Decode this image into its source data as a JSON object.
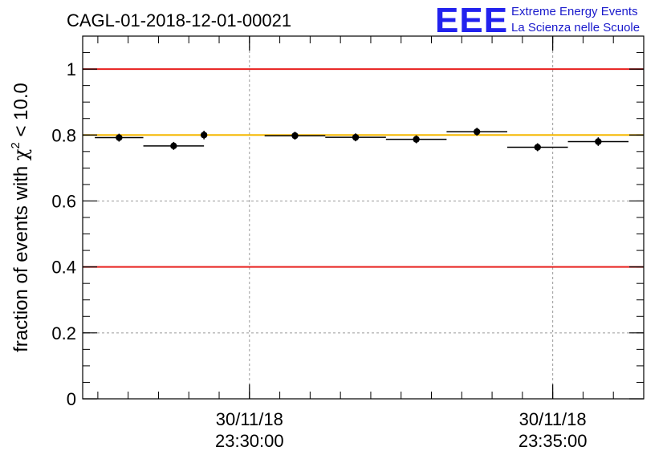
{
  "header": {
    "run_id": "CAGL-01-2018-12-01-00021",
    "logo_text": "EEE",
    "logo_line1": "Extreme Energy Events",
    "logo_line2": "La Scienza nelle Scuole",
    "logo_color": "#2222ee"
  },
  "chart_data": {
    "type": "scatter",
    "ylabel_prefix": "fraction of events with ",
    "ylabel_symbol": "χ",
    "ylabel_power": "2",
    "ylabel_suffix": " < 10.0",
    "ylim": [
      0,
      1.1
    ],
    "xlim_minutes": [
      0,
      18.5
    ],
    "grid": true,
    "y_ticks": [
      {
        "value": 0,
        "label": "0"
      },
      {
        "value": 0.2,
        "label": "0.2"
      },
      {
        "value": 0.4,
        "label": "0.4"
      },
      {
        "value": 0.6,
        "label": "0.6"
      },
      {
        "value": 0.8,
        "label": "0.8"
      },
      {
        "value": 1.0,
        "label": "1"
      }
    ],
    "x_ticks": [
      {
        "minute": 5.5,
        "line1": "30/11/18",
        "line2": "23:30:00"
      },
      {
        "minute": 15.5,
        "line1": "30/11/18",
        "line2": "23:35:00"
      }
    ],
    "reference_lines": [
      {
        "y": 1.0,
        "color": "#e8211f"
      },
      {
        "y": 0.4,
        "color": "#e8211f"
      },
      {
        "y": 0.8,
        "color": "#f5b800"
      }
    ],
    "points": [
      {
        "x_start": 0.4,
        "x_end": 2.0,
        "y": 0.792,
        "err": 0.012
      },
      {
        "x_start": 2.0,
        "x_end": 4.0,
        "y": 0.767,
        "err": 0.012
      },
      {
        "x_start": 4.0,
        "x_end": 4.0,
        "y": 0.8,
        "err": 0.013
      },
      {
        "x_start": 6.0,
        "x_end": 8.0,
        "y": 0.798,
        "err": 0.012
      },
      {
        "x_start": 8.0,
        "x_end": 10.0,
        "y": 0.793,
        "err": 0.012
      },
      {
        "x_start": 10.0,
        "x_end": 12.0,
        "y": 0.787,
        "err": 0.012
      },
      {
        "x_start": 12.0,
        "x_end": 14.0,
        "y": 0.81,
        "err": 0.012
      },
      {
        "x_start": 14.0,
        "x_end": 16.0,
        "y": 0.763,
        "err": 0.012
      },
      {
        "x_start": 16.0,
        "x_end": 18.0,
        "y": 0.78,
        "err": 0.013
      }
    ],
    "point_color": "#000000"
  }
}
